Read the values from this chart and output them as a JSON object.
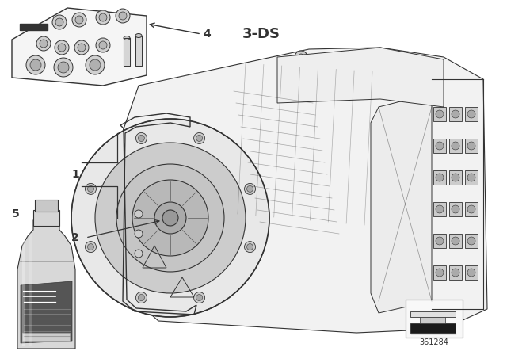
{
  "background_color": "#ffffff",
  "line_color": "#333333",
  "label_4": "4",
  "label_3ds": "3-DS",
  "label_1": "1",
  "label_2": "2",
  "label_5": "5",
  "ref_number": "361284",
  "gray_light": "#e8e8e8",
  "gray_mid": "#cccccc",
  "gray_dark": "#999999",
  "gray_fill": "#f2f2f2",
  "bottle_body": "#d8d8d8",
  "bottle_label": "#555555",
  "bottle_label_dark": "#3a3a3a"
}
